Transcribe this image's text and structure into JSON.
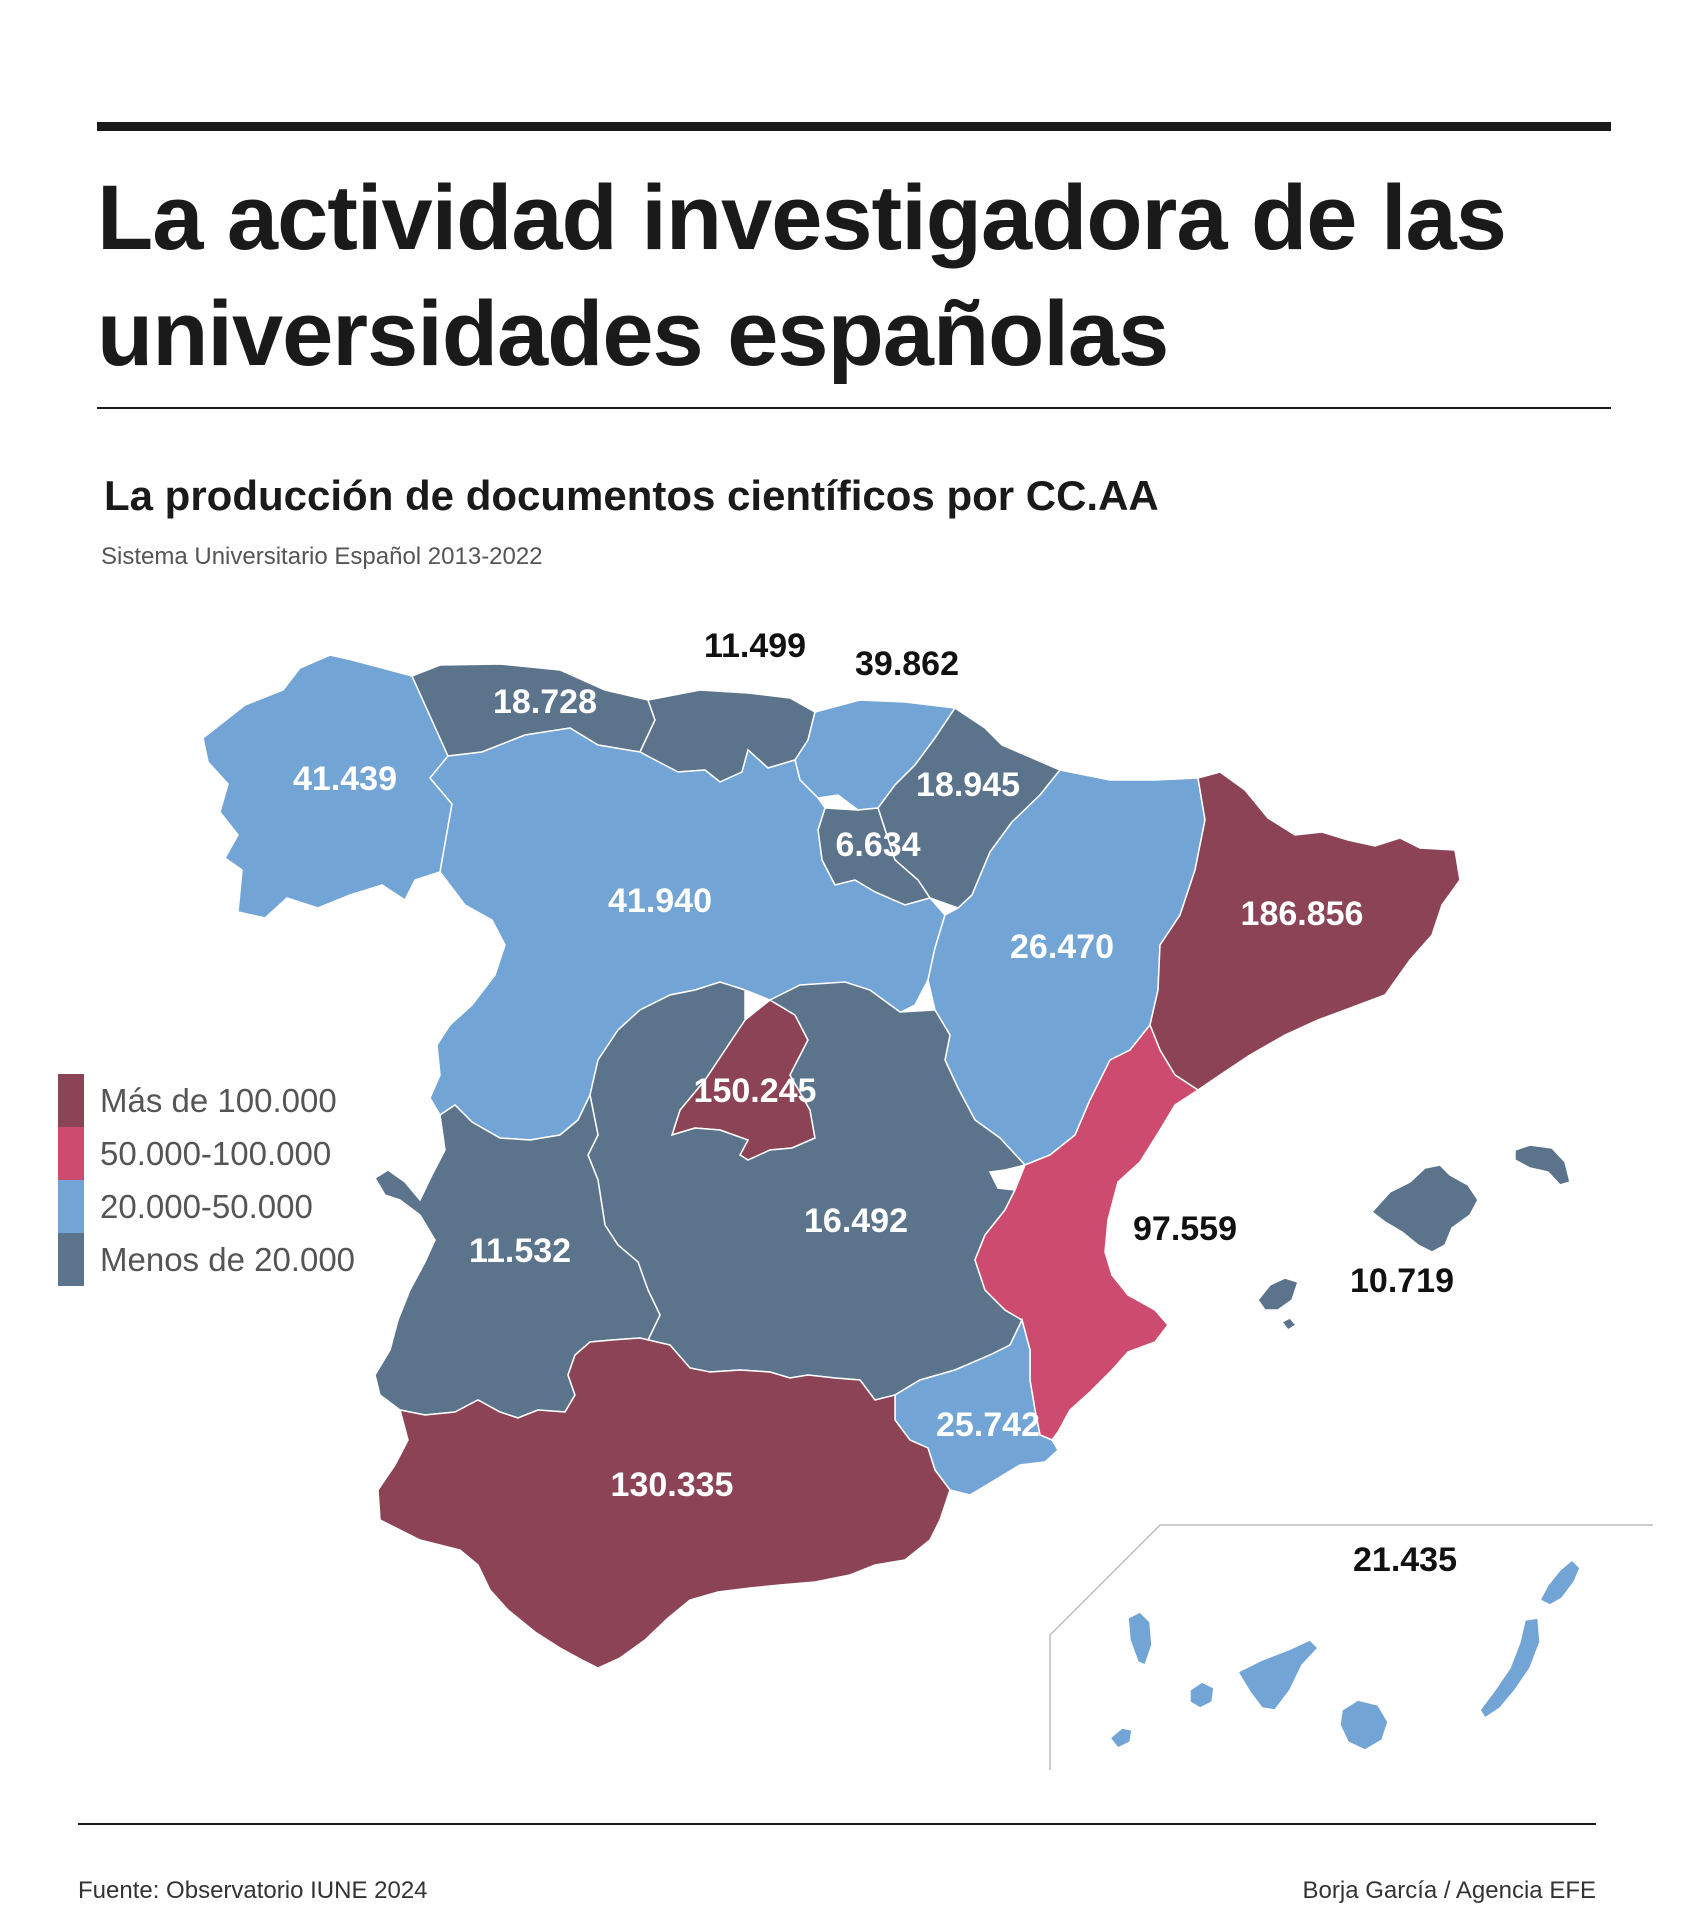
{
  "title": "La actividad investigadora de las universidades españolas",
  "subtitle": "La producción de documentos científicos por CC.AA",
  "period_note": "Sistema Universitario Español 2013-2022",
  "legend": [
    {
      "label": "Más de 100.000",
      "color": "#8b4355"
    },
    {
      "label": "50.000-100.000",
      "color": "#cc4b6e"
    },
    {
      "label": "20.000-50.000",
      "color": "#72a4d6"
    },
    {
      "label": "Menos de 20.000",
      "color": "#5b748b"
    }
  ],
  "regions": {
    "galicia": "41.439",
    "asturias": "18.728",
    "cantabria": "11.499",
    "pais_vasco": "39.862",
    "navarra": "18.945",
    "la_rioja": "6.634",
    "castilla_y_leon": "41.940",
    "aragon": "26.470",
    "cataluna": "186.856",
    "madrid": "150.245",
    "castilla_la_mancha": "16.492",
    "extremadura": "11.532",
    "valencia": "97.559",
    "baleares": "10.719",
    "murcia": "25.742",
    "andalucia": "130.335",
    "canarias": "21.435"
  },
  "source": "Fuente: Observatorio IUNE 2024",
  "credit": "Borja García / Agencia EFE"
}
